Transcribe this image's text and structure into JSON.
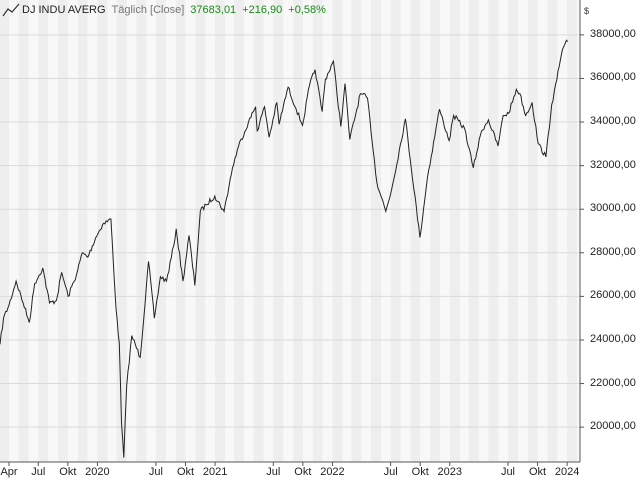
{
  "header": {
    "symbol": "DJ INDU AVERG",
    "period": "Täglich [Close]",
    "last": "37683,01",
    "change": "+216,90",
    "change_pct": "+0,58%",
    "currency": "$",
    "logo_icon": "line-chart-icon"
  },
  "colors": {
    "line": "#222222",
    "band_light": "#f8f8f8",
    "band_dark": "#eeeeee",
    "grid": "#dadada",
    "positive": "#1a8a1a"
  },
  "chart_data": {
    "type": "line",
    "title": "DJ INDU AVERG",
    "xlabel": "",
    "ylabel": "",
    "ylim": [
      18400,
      39600
    ],
    "xlim": [
      "2019-03-04",
      "2024-02-10"
    ],
    "grid": true,
    "y_ticks": [
      20000,
      22000,
      24000,
      26000,
      28000,
      30000,
      32000,
      34000,
      36000,
      38000
    ],
    "y_tick_labels": [
      "20000,00",
      "22000,00",
      "24000,00",
      "26000,00",
      "28000,00",
      "30000,00",
      "32000,00",
      "34000,00",
      "36000,00",
      "38000,00"
    ],
    "x_ticks": [
      {
        "date": "2019-04-01",
        "label": "Apr"
      },
      {
        "date": "2019-07-01",
        "label": "Jul"
      },
      {
        "date": "2019-10-01",
        "label": "Okt"
      },
      {
        "date": "2020-01-01",
        "label": "2020"
      },
      {
        "date": "2020-07-01",
        "label": "Jul"
      },
      {
        "date": "2020-10-01",
        "label": "Okt"
      },
      {
        "date": "2021-01-01",
        "label": "2021"
      },
      {
        "date": "2021-07-01",
        "label": "Jul"
      },
      {
        "date": "2021-10-01",
        "label": "Okt"
      },
      {
        "date": "2022-01-01",
        "label": "2022"
      },
      {
        "date": "2022-07-01",
        "label": "Jul"
      },
      {
        "date": "2022-10-01",
        "label": "Okt"
      },
      {
        "date": "2023-01-01",
        "label": "2023"
      },
      {
        "date": "2023-07-01",
        "label": "Jul"
      },
      {
        "date": "2023-10-01",
        "label": "Okt"
      },
      {
        "date": "2024-01-01",
        "label": "2024"
      }
    ],
    "series": [
      {
        "values": [
          [
            "2019-03-04",
            23800
          ],
          [
            "2019-03-15",
            25000
          ],
          [
            "2019-04-01",
            25600
          ],
          [
            "2019-04-23",
            26700
          ],
          [
            "2019-05-15",
            25700
          ],
          [
            "2019-06-03",
            24800
          ],
          [
            "2019-06-20",
            26600
          ],
          [
            "2019-07-15",
            27300
          ],
          [
            "2019-08-05",
            25700
          ],
          [
            "2019-08-26",
            25800
          ],
          [
            "2019-09-12",
            27100
          ],
          [
            "2019-10-02",
            26000
          ],
          [
            "2019-10-28",
            27000
          ],
          [
            "2019-11-15",
            28000
          ],
          [
            "2019-12-02",
            27800
          ],
          [
            "2019-12-27",
            28700
          ],
          [
            "2020-01-17",
            29300
          ],
          [
            "2020-02-12",
            29550
          ],
          [
            "2020-02-28",
            25400
          ],
          [
            "2020-03-09",
            23850
          ],
          [
            "2020-03-16",
            20200
          ],
          [
            "2020-03-23",
            18600
          ],
          [
            "2020-04-01",
            21900
          ],
          [
            "2020-04-17",
            24200
          ],
          [
            "2020-05-13",
            23200
          ],
          [
            "2020-06-08",
            27600
          ],
          [
            "2020-06-26",
            25000
          ],
          [
            "2020-07-15",
            26900
          ],
          [
            "2020-08-03",
            26700
          ],
          [
            "2020-08-25",
            28300
          ],
          [
            "2020-09-02",
            29100
          ],
          [
            "2020-09-23",
            26700
          ],
          [
            "2020-10-12",
            28800
          ],
          [
            "2020-10-30",
            26500
          ],
          [
            "2020-11-16",
            29900
          ],
          [
            "2020-12-04",
            30200
          ],
          [
            "2020-12-31",
            30600
          ],
          [
            "2021-01-29",
            29900
          ],
          [
            "2021-02-24",
            31900
          ],
          [
            "2021-03-15",
            32900
          ],
          [
            "2021-04-15",
            34000
          ],
          [
            "2021-05-07",
            34700
          ],
          [
            "2021-05-12",
            33600
          ],
          [
            "2021-06-04",
            34700
          ],
          [
            "2021-06-18",
            33300
          ],
          [
            "2021-07-12",
            34900
          ],
          [
            "2021-07-19",
            33900
          ],
          [
            "2021-08-16",
            35600
          ],
          [
            "2021-09-10",
            34600
          ],
          [
            "2021-09-30",
            33850
          ],
          [
            "2021-10-22",
            35700
          ],
          [
            "2021-11-08",
            36400
          ],
          [
            "2021-11-30",
            34480
          ],
          [
            "2021-12-10",
            35970
          ],
          [
            "2022-01-04",
            36790
          ],
          [
            "2022-01-27",
            33800
          ],
          [
            "2022-02-09",
            35770
          ],
          [
            "2022-02-24",
            33200
          ],
          [
            "2022-03-29",
            35300
          ],
          [
            "2022-04-20",
            35100
          ],
          [
            "2022-05-19",
            31250
          ],
          [
            "2022-06-16",
            29900
          ],
          [
            "2022-07-05",
            30970
          ],
          [
            "2022-08-16",
            34150
          ],
          [
            "2022-09-30",
            28700
          ],
          [
            "2022-10-24",
            31500
          ],
          [
            "2022-11-30",
            34590
          ],
          [
            "2022-12-12",
            34000
          ],
          [
            "2022-12-30",
            33150
          ],
          [
            "2023-01-13",
            34300
          ],
          [
            "2023-02-16",
            33700
          ],
          [
            "2023-03-15",
            31900
          ],
          [
            "2023-04-10",
            33600
          ],
          [
            "2023-05-01",
            34100
          ],
          [
            "2023-05-31",
            32900
          ],
          [
            "2023-06-16",
            34300
          ],
          [
            "2023-07-03",
            34400
          ],
          [
            "2023-07-27",
            35500
          ],
          [
            "2023-08-07",
            35300
          ],
          [
            "2023-08-25",
            34300
          ],
          [
            "2023-09-14",
            34900
          ],
          [
            "2023-10-03",
            33000
          ],
          [
            "2023-10-27",
            32400
          ],
          [
            "2023-11-14",
            34800
          ],
          [
            "2023-11-30",
            35950
          ],
          [
            "2023-12-14",
            37100
          ],
          [
            "2023-12-28",
            37700
          ],
          [
            "2024-01-02",
            37683
          ]
        ]
      }
    ]
  }
}
